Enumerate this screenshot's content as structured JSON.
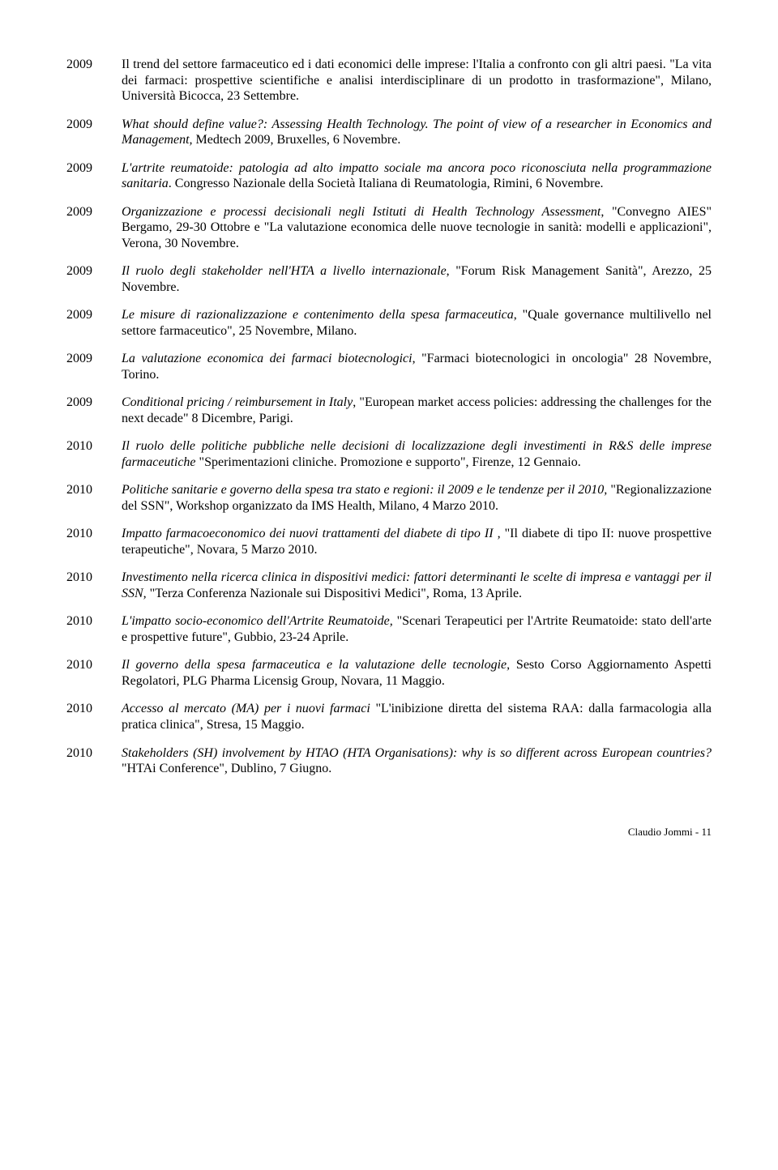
{
  "entries": [
    {
      "year": "2009",
      "segments": [
        {
          "text": "Il trend del settore farmaceutico ed i dati economici delle imprese: l'Italia a confronto con gli altri paesi.",
          "italic": false
        },
        {
          "text": " \"La vita dei farmaci: prospettive scientifiche e analisi interdisciplinare di un prodotto in trasformazione\", Milano, Università Bicocca, 23 Settembre.",
          "italic": false
        }
      ]
    },
    {
      "year": "2009",
      "segments": [
        {
          "text": "What should define value?: Assessing Health Technology. The point of view of a researcher in Economics and Management, ",
          "italic": true
        },
        {
          "text": "Medtech 2009, Bruxelles, 6 Novembre.",
          "italic": false
        }
      ]
    },
    {
      "year": "2009",
      "segments": [
        {
          "text": "L'artrite reumatoide: patologia ad alto impatto sociale ma ancora poco riconosciuta nella programmazione sanitaria",
          "italic": true
        },
        {
          "text": ". Congresso Nazionale della Società Italiana di Reumatologia, Rimini, 6 Novembre.",
          "italic": false
        }
      ]
    },
    {
      "year": "2009",
      "segments": [
        {
          "text": "Organizzazione e processi decisionali negli Istituti di Health Technology Assessment",
          "italic": true
        },
        {
          "text": ", \"Convegno AIES\" Bergamo, 29-30 Ottobre e \"La valutazione economica delle nuove tecnologie in sanità: modelli e applicazioni\", Verona, 30 Novembre.",
          "italic": false
        }
      ]
    },
    {
      "year": "2009",
      "segments": [
        {
          "text": "Il ruolo degli stakeholder nell'HTA a livello internazionale",
          "italic": true
        },
        {
          "text": ", \"Forum Risk Management Sanità\", Arezzo, 25 Novembre.",
          "italic": false
        }
      ]
    },
    {
      "year": "2009",
      "segments": [
        {
          "text": "Le misure di razionalizzazione e contenimento della spesa farmaceutica",
          "italic": true
        },
        {
          "text": ", \"Quale governance multilivello nel settore farmaceutico\", 25 Novembre, Milano.",
          "italic": false
        }
      ]
    },
    {
      "year": "2009",
      "segments": [
        {
          "text": "La valutazione economica dei farmaci biotecnologici",
          "italic": true
        },
        {
          "text": ", \"Farmaci biotecnologici in oncologia\" 28 Novembre, Torino.",
          "italic": false
        }
      ]
    },
    {
      "year": "2009",
      "segments": [
        {
          "text": "Conditional pricing / reimbursement in Italy",
          "italic": true
        },
        {
          "text": ", \"European market access policies: addressing the challenges for the next decade\" 8 Dicembre, Parigi.",
          "italic": false
        }
      ]
    },
    {
      "year": "2010",
      "segments": [
        {
          "text": "Il ruolo delle politiche pubbliche nelle decisioni di localizzazione degli investimenti in R&S delle imprese farmaceutiche ",
          "italic": true
        },
        {
          "text": "\"Sperimentazioni cliniche. Promozione e supporto\", Firenze, 12 Gennaio.",
          "italic": false
        }
      ]
    },
    {
      "year": "2010",
      "segments": [
        {
          "text": "Politiche sanitarie e governo della spesa tra stato e regioni: il 2009 e le tendenze per il 2010, ",
          "italic": true
        },
        {
          "text": "\"Regionalizzazione del SSN\", Workshop organizzato da IMS Health, Milano, 4 Marzo 2010.",
          "italic": false
        }
      ]
    },
    {
      "year": "2010",
      "segments": [
        {
          "text": "Impatto farmacoeconomico dei nuovi trattamenti del diabete di tipo II , ",
          "italic": true
        },
        {
          "text": "\"Il diabete di tipo II: nuove prospettive terapeutiche\", Novara, 5 Marzo 2010.",
          "italic": false
        }
      ]
    },
    {
      "year": "2010",
      "segments": [
        {
          "text": "Investimento nella ricerca clinica in dispositivi medici: fattori determinanti le scelte di impresa e vantaggi per il SSN, ",
          "italic": true
        },
        {
          "text": "\"Terza Conferenza Nazionale sui Dispositivi Medici\", Roma, 13 Aprile.",
          "italic": false
        }
      ]
    },
    {
      "year": "2010",
      "segments": [
        {
          "text": "L'impatto socio-economico dell'Artrite Reumatoide, ",
          "italic": true
        },
        {
          "text": "\"Scenari Terapeutici per l'Artrite Reumatoide: stato dell'arte e prospettive future\", Gubbio, 23-24 Aprile.",
          "italic": false
        }
      ]
    },
    {
      "year": "2010",
      "segments": [
        {
          "text": "Il governo della spesa farmaceutica e la valutazione delle tecnologie, ",
          "italic": true
        },
        {
          "text": "Sesto Corso Aggiornamento Aspetti Regolatori, PLG Pharma Licensig Group, Novara",
          "italic": false
        },
        {
          "text": ", ",
          "italic": true
        },
        {
          "text": "11 Maggio.",
          "italic": false
        }
      ]
    },
    {
      "year": "2010",
      "segments": [
        {
          "text": "Accesso al mercato (MA) per i nuovi farmaci ",
          "italic": true
        },
        {
          "text": "\"L'inibizione diretta del sistema RAA: dalla farmacologia alla pratica clinica\", Stresa, 15 Maggio.",
          "italic": false
        }
      ]
    },
    {
      "year": "2010",
      "segments": [
        {
          "text": "Stakeholders (SH) involvement by HTAO (HTA Organisations): why is so different across European countries? ",
          "italic": true
        },
        {
          "text": "\"HTAi Conference\", Dublino, 7 Giugno.",
          "italic": false
        }
      ]
    }
  ],
  "footer": "Claudio Jommi - 11"
}
